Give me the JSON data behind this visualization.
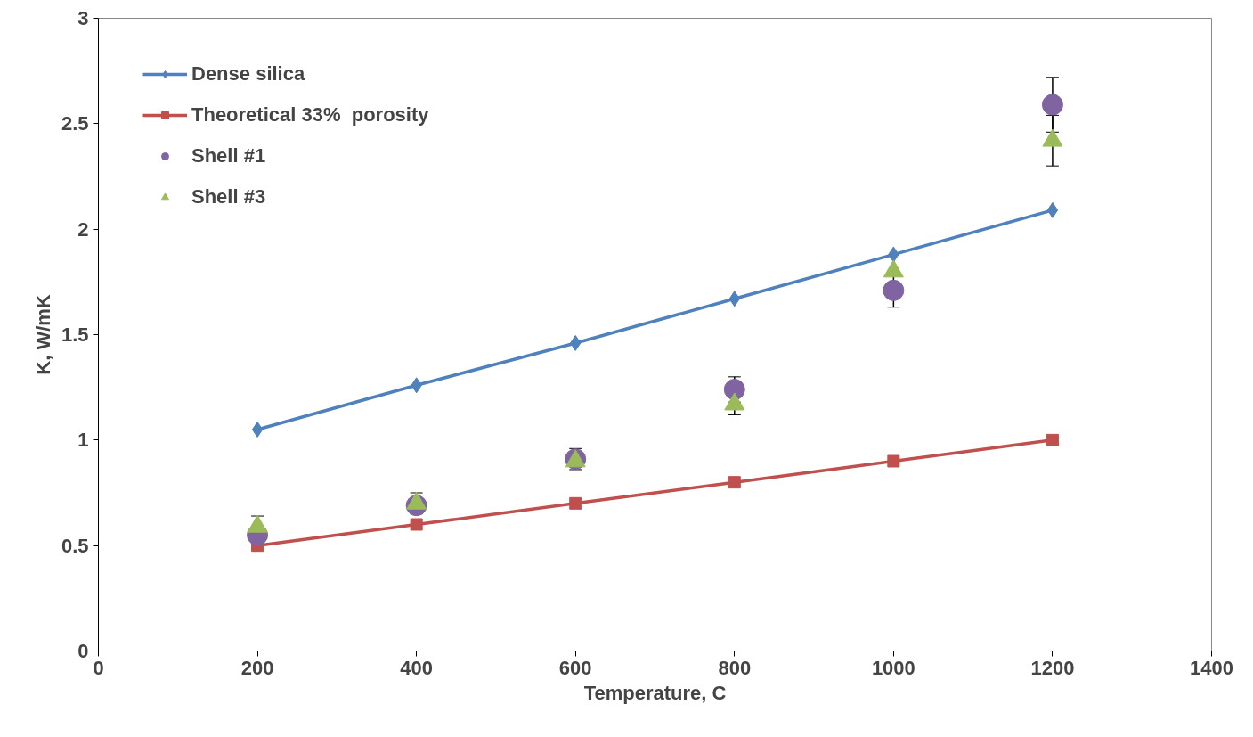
{
  "chart_data": {
    "type": "line",
    "xlabel": "Temperature, C",
    "ylabel": "K, W/mK",
    "x": [
      200,
      400,
      600,
      800,
      1000,
      1200
    ],
    "series": [
      {
        "name": "Dense silica",
        "marker": "diamond",
        "color": "#4f81bd",
        "values": [
          1.05,
          1.26,
          1.46,
          1.67,
          1.88,
          2.09
        ]
      },
      {
        "name": "Theoretical 33%  porosity",
        "marker": "square",
        "color": "#c0504d",
        "values": [
          0.5,
          0.6,
          0.7,
          0.8,
          0.9,
          1.0
        ]
      },
      {
        "name": "Shell #1",
        "type": "scatter",
        "marker": "circle",
        "color": "#8064a2",
        "values": [
          0.55,
          0.69,
          0.91,
          1.24,
          1.71,
          2.59
        ],
        "errors": [
          null,
          null,
          0.05,
          0.06,
          0.08,
          0.13
        ]
      },
      {
        "name": "Shell #3",
        "type": "scatter",
        "marker": "triangle",
        "color": "#9bbb59",
        "values": [
          0.59,
          0.7,
          0.9,
          1.17,
          1.8,
          2.42
        ],
        "errors": [
          0.05,
          0.05,
          null,
          0.05,
          null,
          0.12
        ]
      }
    ],
    "xlim": [
      0,
      1400
    ],
    "xticks": [
      0,
      200,
      400,
      600,
      800,
      1000,
      1200,
      1400
    ],
    "ylim": [
      0,
      3
    ],
    "yticks": [
      0,
      0.5,
      1,
      1.5,
      2,
      2.5,
      3
    ],
    "grid": false,
    "legend": "top left"
  }
}
